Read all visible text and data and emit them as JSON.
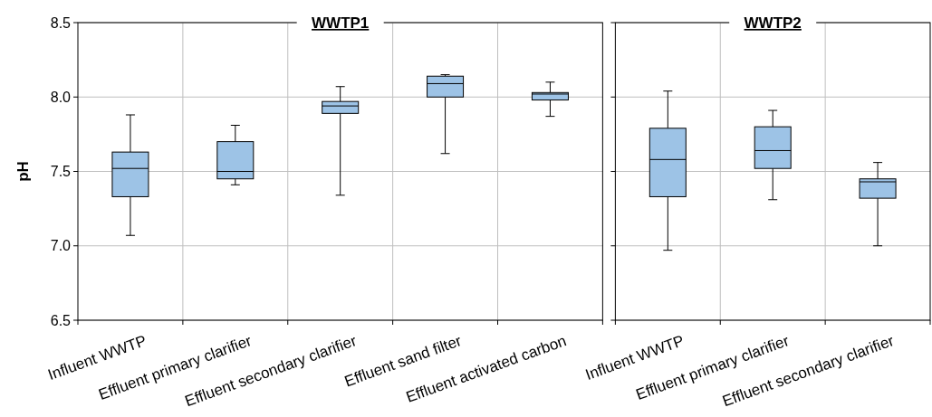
{
  "chart_data": [
    {
      "type": "box",
      "title": "WWTP1",
      "ylabel": "pH",
      "categories": [
        "Influent WWTP",
        "Effluent primary clarifier",
        "Effluent secondary clarifier",
        "Effluent sand filter",
        "Effluent activated carbon"
      ],
      "ylim": [
        6.5,
        8.5
      ],
      "yticks": [
        {
          "value": 6.5,
          "label": "6.5"
        },
        {
          "value": 7,
          "label": "7.0"
        },
        {
          "value": 7.5,
          "label": "7.5"
        },
        {
          "value": 8,
          "label": "8.0"
        },
        {
          "value": 8.5,
          "label": "8.5"
        }
      ],
      "grid": true,
      "series": [
        {
          "color": "#9dc3e6",
          "boxes": [
            {
              "low": 7.07,
              "q1": 7.33,
              "median": 7.52,
              "q3": 7.63,
              "high": 7.88
            },
            {
              "low": 7.41,
              "q1": 7.45,
              "median": 7.5,
              "q3": 7.7,
              "high": 7.81
            },
            {
              "low": 7.34,
              "q1": 7.89,
              "median": 7.94,
              "q3": 7.97,
              "high": 8.07
            },
            {
              "low": 7.62,
              "q1": 8.0,
              "median": 8.09,
              "q3": 8.14,
              "high": 8.15
            },
            {
              "low": 7.87,
              "q1": 7.98,
              "median": 8.02,
              "q3": 8.03,
              "high": 8.1
            }
          ]
        }
      ]
    },
    {
      "type": "box",
      "title": "WWTP2",
      "categories": [
        "Influent WWTP",
        "Effluent primary clarifier",
        "Effluent secondary clarifier"
      ],
      "ylim": [
        6.5,
        8.5
      ],
      "yticks": [
        {
          "value": 6.5,
          "label": null
        },
        {
          "value": 7,
          "label": null
        },
        {
          "value": 7.5,
          "label": null
        },
        {
          "value": 8,
          "label": null
        },
        {
          "value": 8.5,
          "label": null
        }
      ],
      "grid": true,
      "tick_labels": "x",
      "series": [
        {
          "color": "#9dc3e6",
          "boxes": [
            {
              "low": 6.97,
              "q1": 7.33,
              "median": 7.58,
              "q3": 7.79,
              "high": 8.04
            },
            {
              "low": 7.31,
              "q1": 7.52,
              "median": 7.64,
              "q3": 7.8,
              "high": 7.91
            },
            {
              "low": 7.0,
              "q1": 7.32,
              "median": 7.43,
              "q3": 7.45,
              "high": 7.56
            }
          ]
        }
      ]
    }
  ]
}
